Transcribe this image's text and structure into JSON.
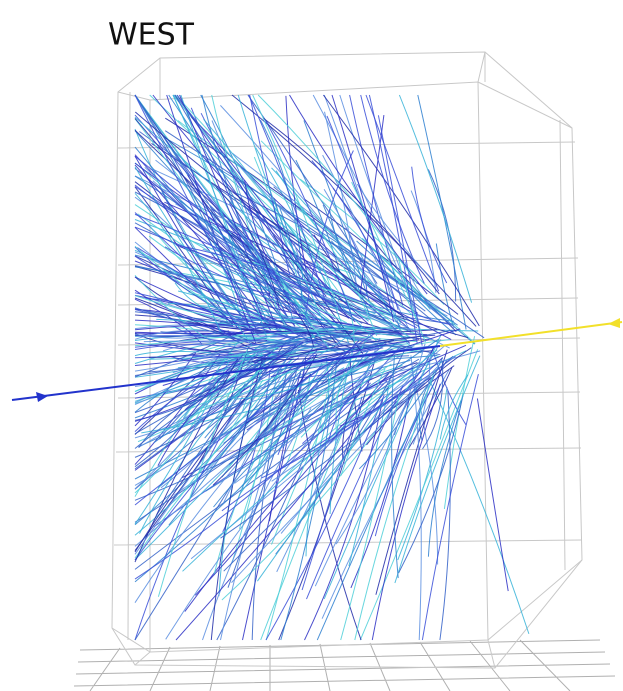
{
  "title": "WEST"
}
